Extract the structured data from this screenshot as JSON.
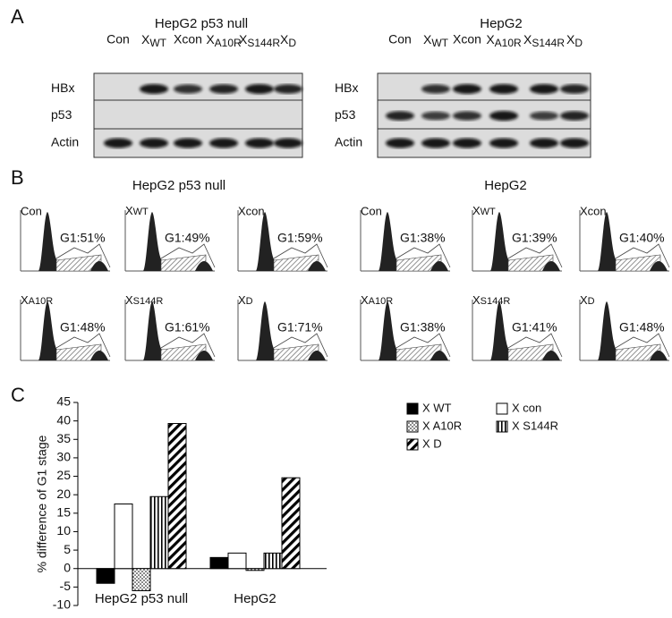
{
  "figure": {
    "panel_a": {
      "label": "A",
      "groups": [
        {
          "title": "HepG2 p53 null",
          "lanes": [
            "Con",
            {
              "base": "X",
              "sub": "WT"
            },
            "Xcon",
            {
              "base": "X",
              "sub": "A10R"
            },
            {
              "base": "X",
              "sub": "S144R"
            },
            {
              "base": "X",
              "sub": "D"
            }
          ],
          "rows": [
            "HBx",
            "p53",
            "Actin"
          ]
        },
        {
          "title": "HepG2",
          "lanes": [
            "Con",
            {
              "base": "X",
              "sub": "WT"
            },
            "Xcon",
            {
              "base": "X",
              "sub": "A10R"
            },
            {
              "base": "X",
              "sub": "S144R"
            },
            {
              "base": "X",
              "sub": "D"
            }
          ],
          "rows": [
            "HBx",
            "p53",
            "Actin"
          ]
        }
      ]
    },
    "panel_b": {
      "label": "B",
      "groups": [
        {
          "title": "HepG2 p53 null",
          "panels": [
            {
              "name": "Con",
              "g1": "G1:51%"
            },
            {
              "name": {
                "base": "X",
                "sub": "WT"
              },
              "g1": "G1:49%"
            },
            {
              "name": "Xcon",
              "g1": "G1:59%"
            },
            {
              "name": {
                "base": "X",
                "sub": "A10R"
              },
              "g1": "G1:48%"
            },
            {
              "name": {
                "base": "X",
                "sub": "S144R"
              },
              "g1": "G1:61%"
            },
            {
              "name": {
                "base": "X",
                "sub": "D"
              },
              "g1": "G1:71%"
            }
          ]
        },
        {
          "title": "HepG2",
          "panels": [
            {
              "name": "Con",
              "g1": "G1:38%"
            },
            {
              "name": {
                "base": "X",
                "sub": "WT"
              },
              "g1": "G1:39%"
            },
            {
              "name": "Xcon",
              "g1": "G1:40%"
            },
            {
              "name": {
                "base": "X",
                "sub": "A10R"
              },
              "g1": "G1:38%"
            },
            {
              "name": {
                "base": "X",
                "sub": "S144R"
              },
              "g1": "G1:41%"
            },
            {
              "name": {
                "base": "X",
                "sub": "D"
              },
              "g1": "G1:48%"
            }
          ]
        }
      ]
    }
  },
  "chart_data": {
    "type": "bar",
    "panel_label": "C",
    "y_label": "% difference of G1 stage",
    "categories": [
      "HepG2 p53 null",
      "HepG2"
    ],
    "series": [
      {
        "name": "X WT",
        "color": "#000000",
        "fill": "solid",
        "values": [
          -4,
          3
        ]
      },
      {
        "name": "X con",
        "color": "#000000",
        "fill": "hollow",
        "values": [
          17.5,
          4.2
        ]
      },
      {
        "name": "X A10R",
        "color": "#000000",
        "fill": "dots",
        "values": [
          -6,
          -0.5
        ]
      },
      {
        "name": "X S144R",
        "color": "#000000",
        "fill": "vertical",
        "values": [
          19.5,
          4.2
        ]
      },
      {
        "name": "X D",
        "color": "#000000",
        "fill": "diagonal",
        "values": [
          39.3,
          24.6
        ]
      }
    ],
    "ylim": [
      -10,
      45
    ],
    "yticks": [
      -10,
      -5,
      0,
      5,
      10,
      15,
      20,
      25,
      30,
      35,
      40,
      45
    ],
    "grid": false
  }
}
